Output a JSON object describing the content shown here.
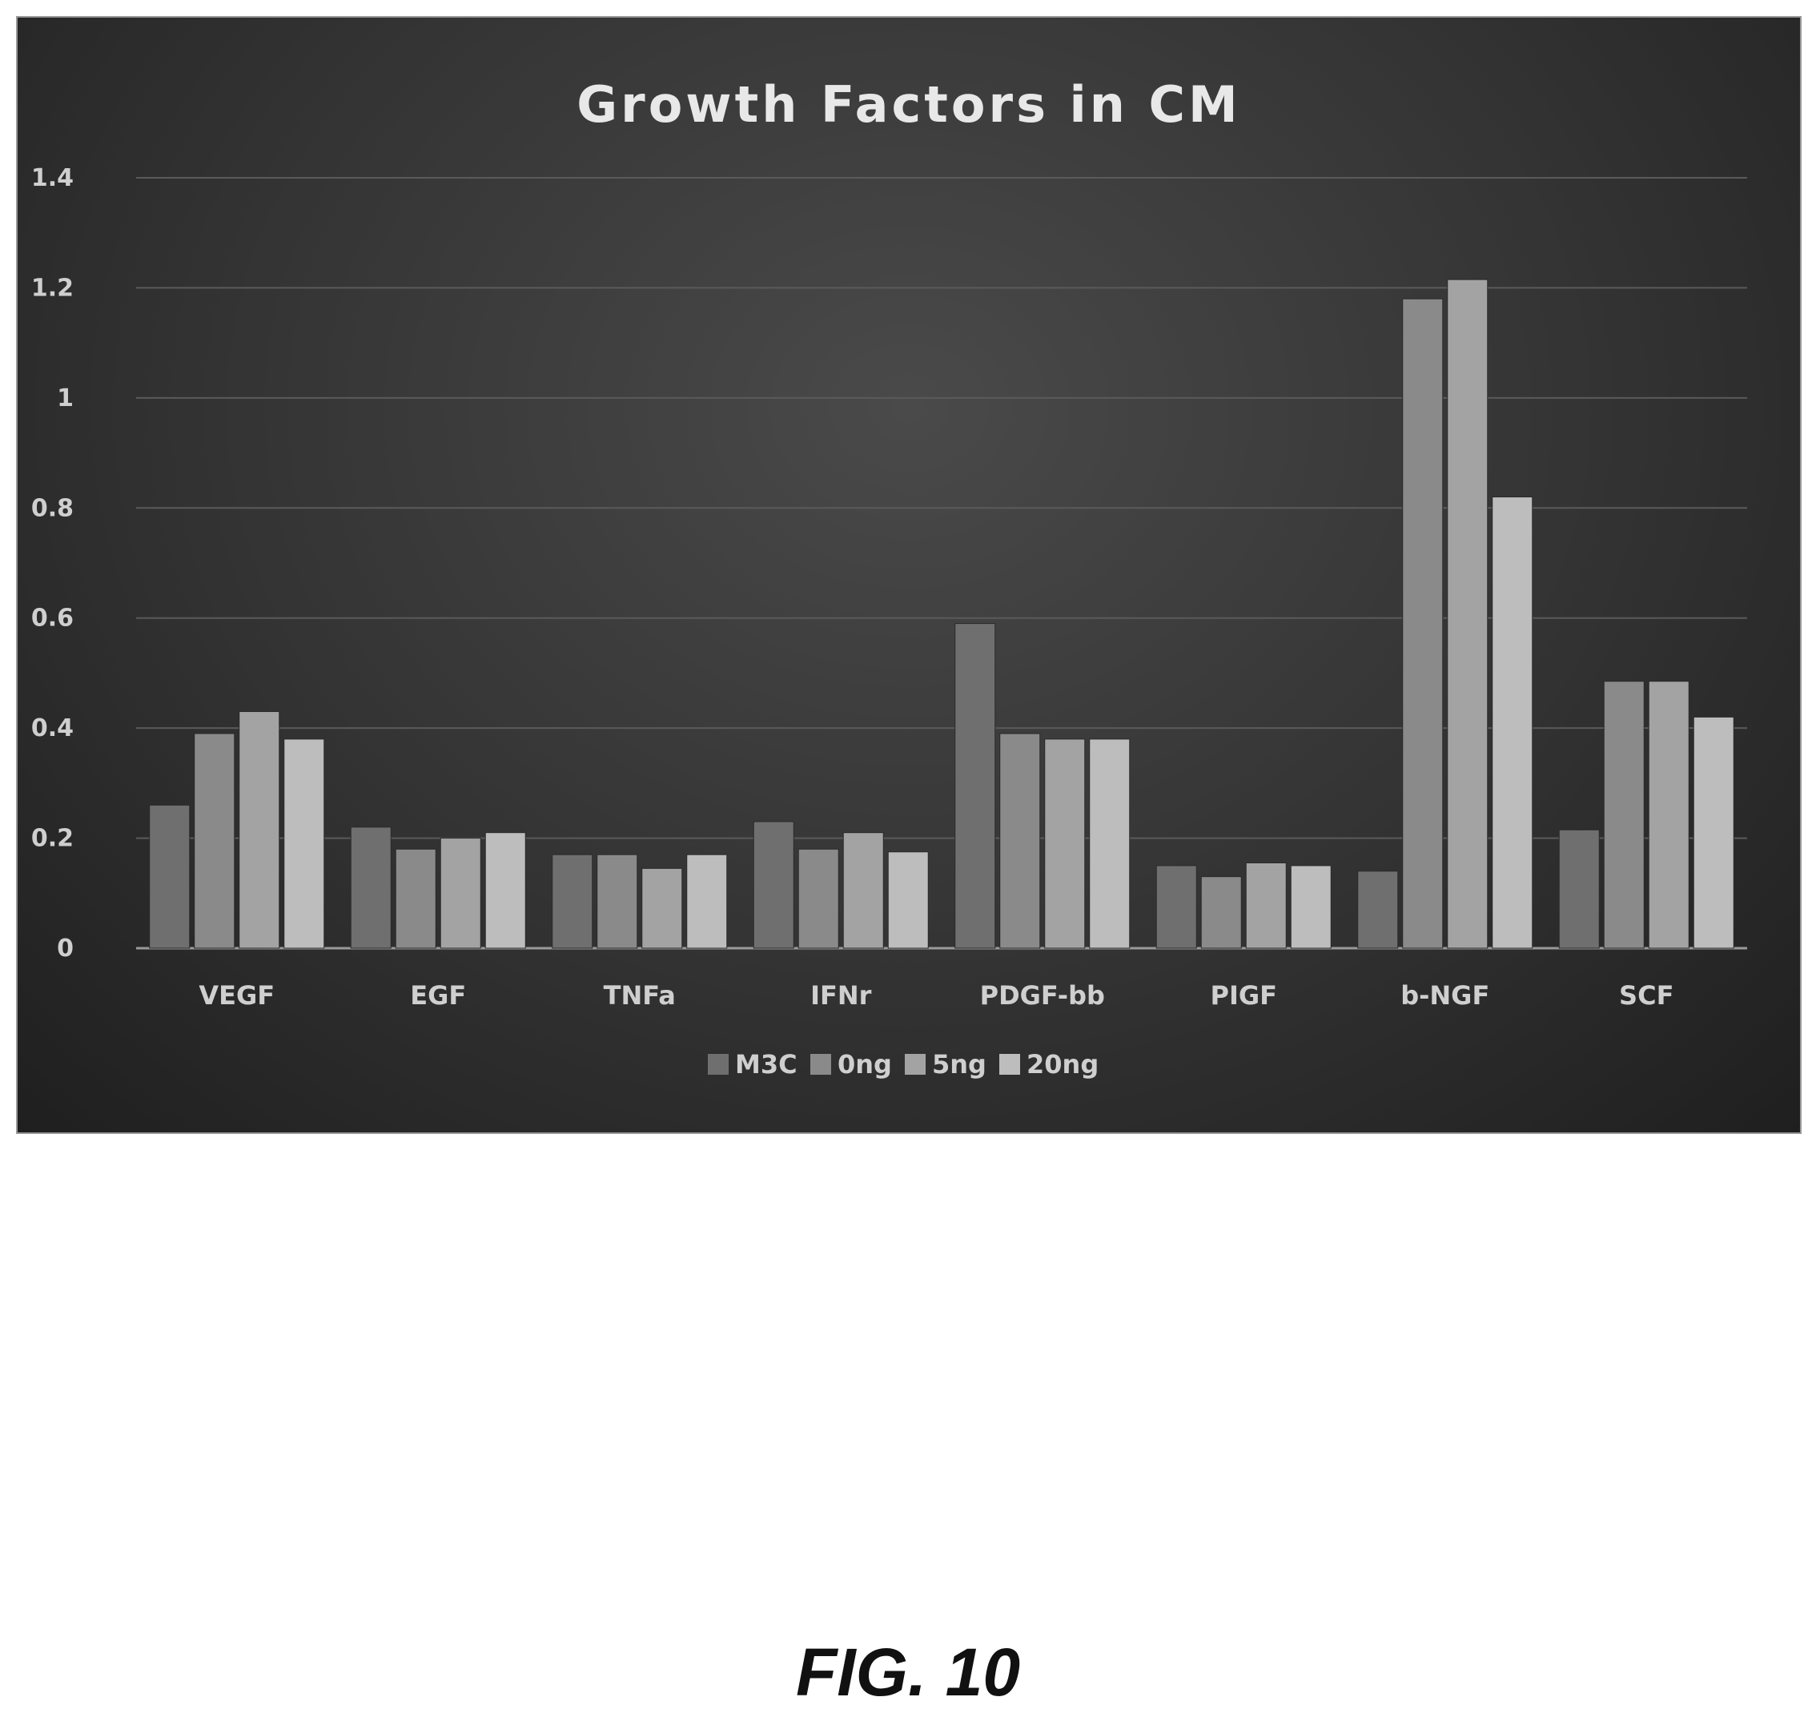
{
  "figure_caption": "FIG. 10",
  "colors": {
    "background": "#333333",
    "M3C": "#6f6f6f",
    "0ng": "#8a8a8a",
    "5ng": "#a3a3a3",
    "20ng": "#bdbdbd",
    "text": "#cfcfcf"
  },
  "chart_data": {
    "type": "bar",
    "title": "Growth Factors in CM",
    "xlabel": "",
    "ylabel": "",
    "ylim": [
      0,
      1.4
    ],
    "yticks": [
      "0",
      "0.2",
      "0.4",
      "0.6",
      "0.8",
      "1",
      "1.2",
      "1.4"
    ],
    "grid": true,
    "legend_position": "bottom",
    "categories": [
      "VEGF",
      "EGF",
      "TNFa",
      "IFNr",
      "PDGF-bb",
      "PIGF",
      "b-NGF",
      "SCF"
    ],
    "series": [
      {
        "name": "M3C",
        "values": [
          0.26,
          0.22,
          0.17,
          0.23,
          0.59,
          0.15,
          0.14,
          0.215
        ]
      },
      {
        "name": "0ng",
        "values": [
          0.39,
          0.18,
          0.17,
          0.18,
          0.39,
          0.13,
          1.18,
          0.485
        ]
      },
      {
        "name": "5ng",
        "values": [
          0.43,
          0.2,
          0.145,
          0.21,
          0.38,
          0.155,
          1.215,
          0.485
        ]
      },
      {
        "name": "20ng",
        "values": [
          0.38,
          0.21,
          0.17,
          0.175,
          0.38,
          0.15,
          0.82,
          0.42
        ]
      }
    ]
  }
}
